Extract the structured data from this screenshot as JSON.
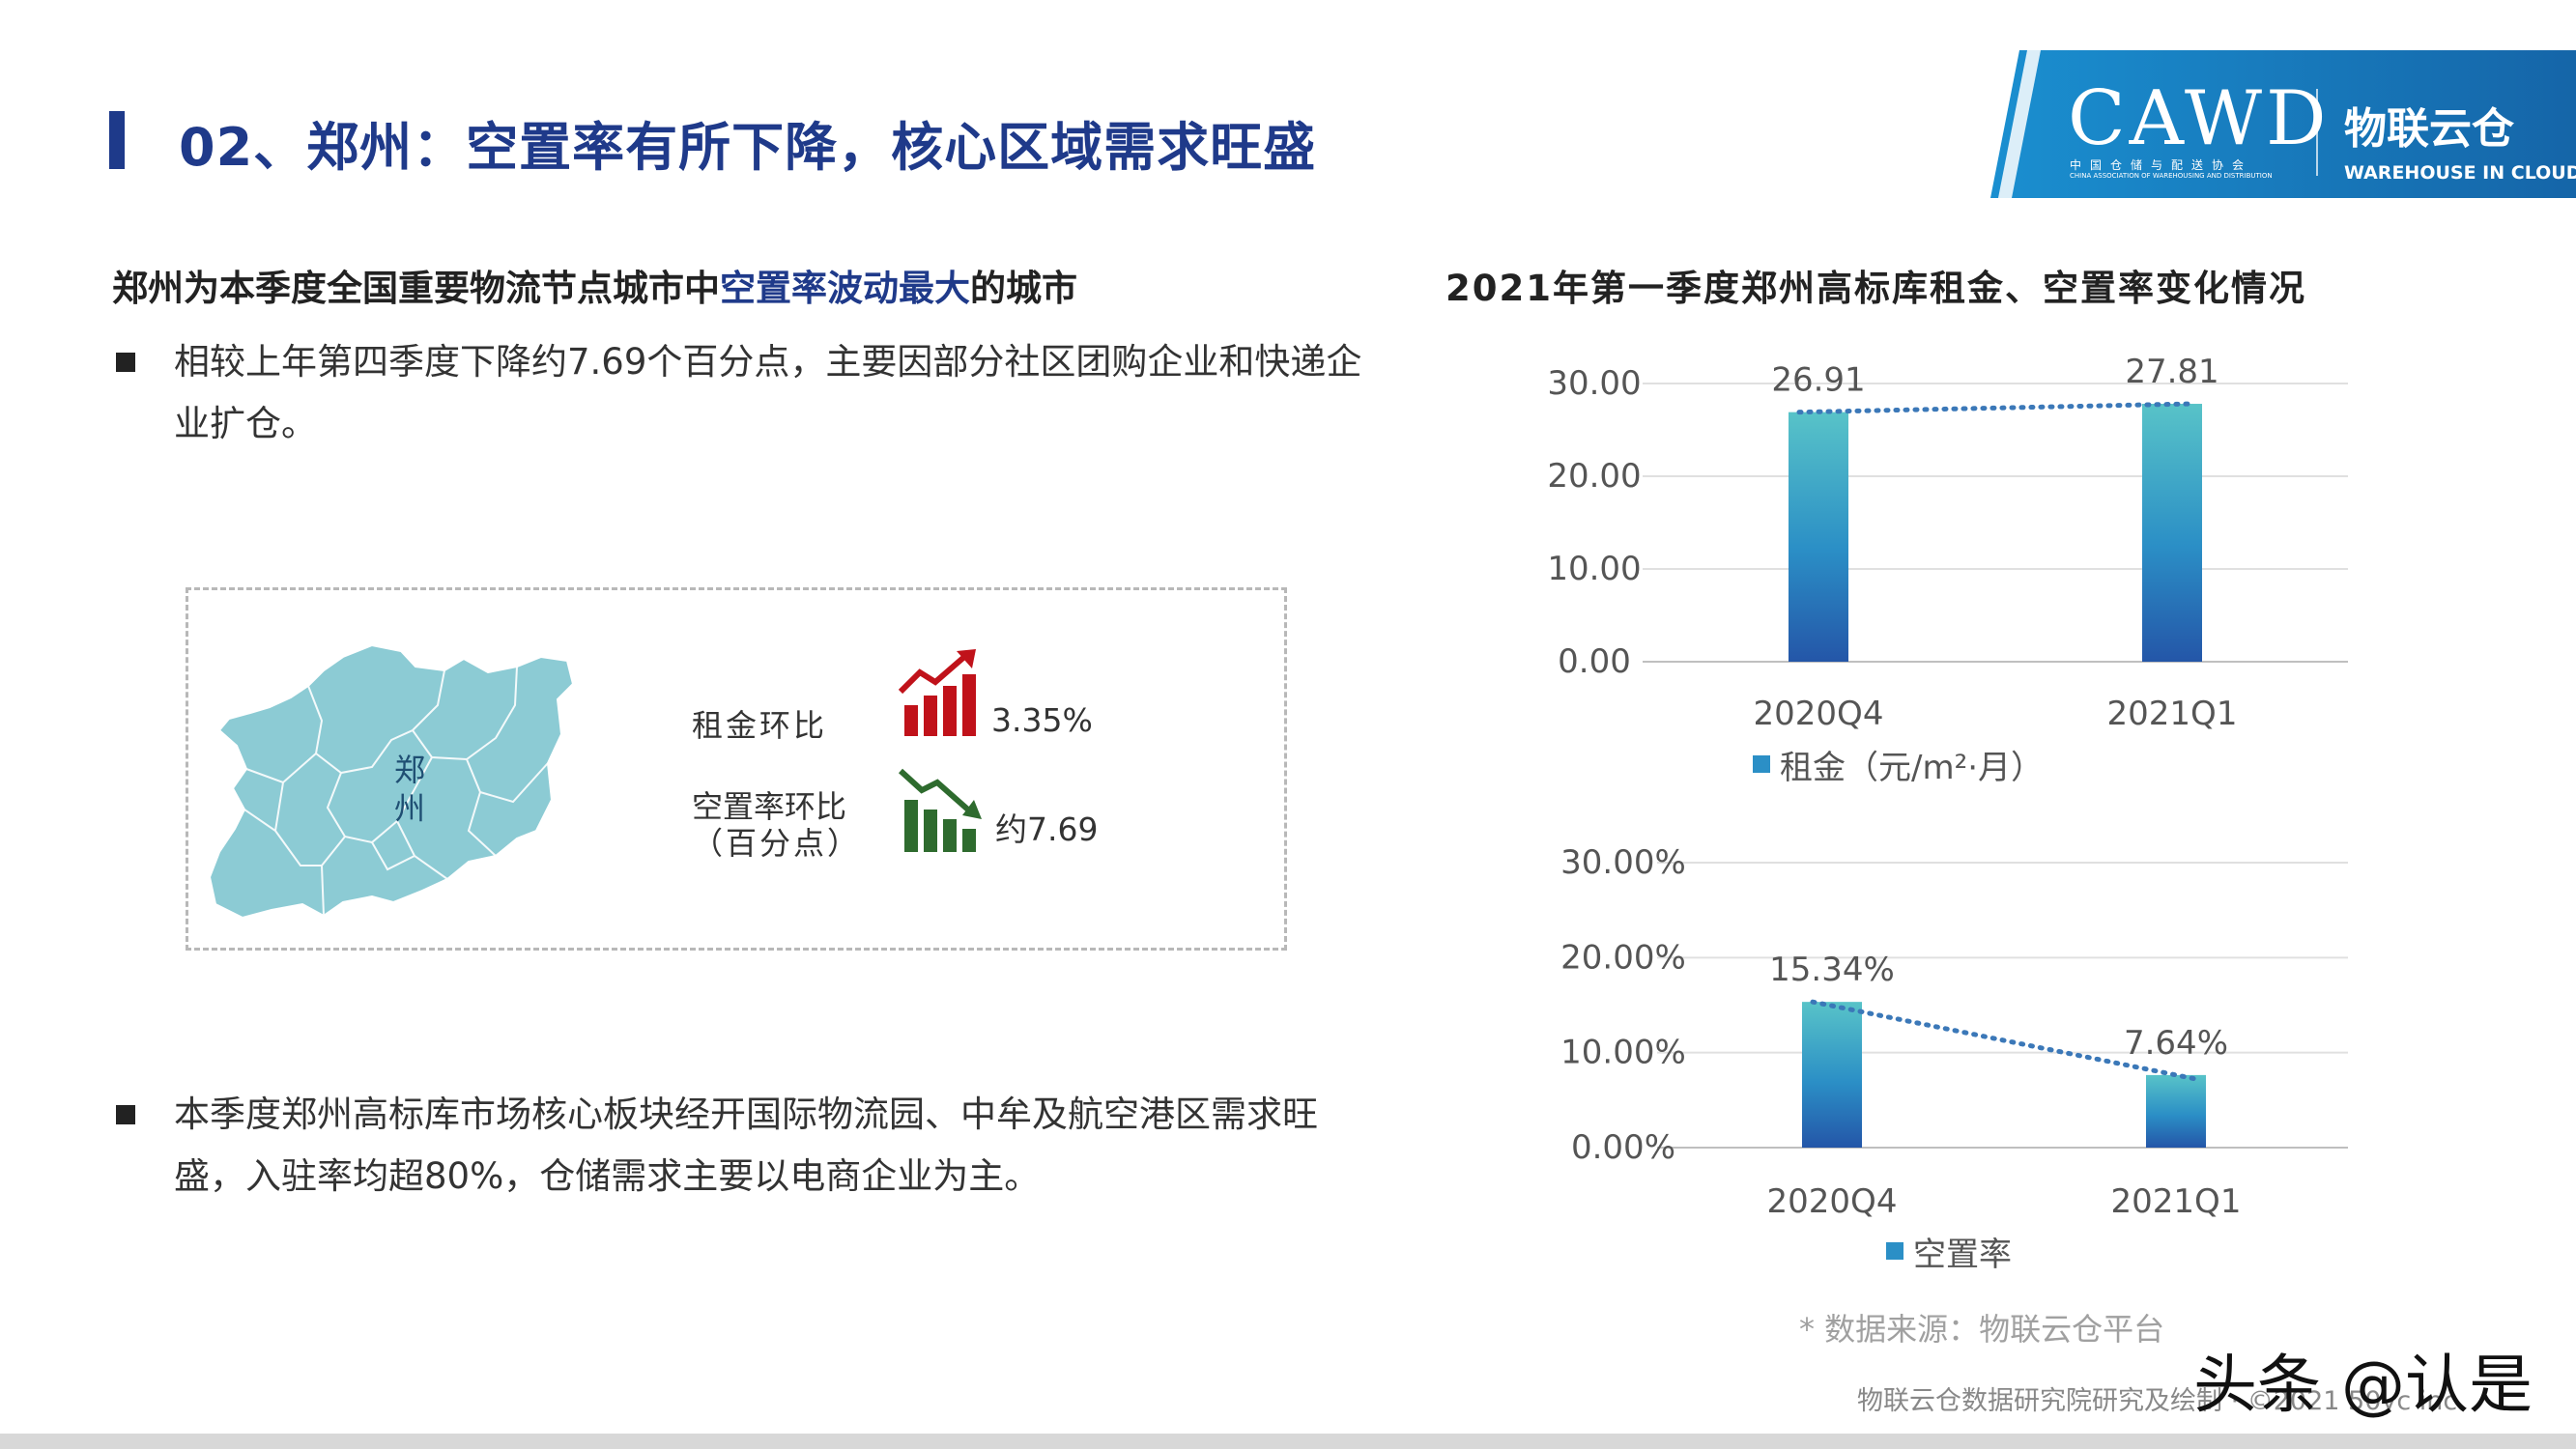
{
  "page": {
    "title": "02、郑州：空置率有所下降，核心区域需求旺盛"
  },
  "logo": {
    "main": "CAWD",
    "sub_cn": "中国仓储与配送协会",
    "sub_en": "CHINA ASSOCIATION OF WAREHOUSING AND DISTRIBUTION",
    "brand_cn": "物联云仓",
    "brand_en": "WAREHOUSE IN CLOUD",
    "colors": {
      "primary": "#1f7fc0",
      "accent": "#e03030"
    }
  },
  "content": {
    "headline_part1": "郑州为本季度全国重要物流节点城市中",
    "headline_highlight": "空置率波动最大",
    "headline_part3": "的城市",
    "bullet1": "相较上年第四季度下降约7.69个百分点，主要因部分社区团购企业和快递企业扩仓。",
    "bullet2": "本季度郑州高标库市场核心板块经开国际物流园、中牟及航空港区需求旺盛，入驻率均超80%，仓储需求主要以电商企业为主。"
  },
  "map_panel": {
    "city_line1": "郑",
    "city_line2": "州",
    "kpi1_label": "租金环比",
    "kpi1_value": "3.35%",
    "kpi1_icon": "trend-up-icon",
    "kpi2_label_line1": "空置率环比",
    "kpi2_label_line2": "（百分点）",
    "kpi2_value": "约7.69",
    "kpi2_icon": "trend-down-icon",
    "colors": {
      "map_fill": "#8ccbd4",
      "up": "#c0121a",
      "down": "#2e6b2e"
    }
  },
  "chart_title": "2021年第一季度郑州高标库租金、空置率变化情况",
  "chart_data": [
    {
      "type": "bar",
      "categories": [
        "2020Q4",
        "2021Q1"
      ],
      "series": [
        {
          "name": "租金（元/m²·月）",
          "values": [
            26.91,
            27.81
          ]
        }
      ],
      "data_labels": [
        "26.91",
        "27.81"
      ],
      "y_ticks": [
        "0.00",
        "10.00",
        "20.00",
        "30.00"
      ],
      "ylim": [
        0,
        30
      ],
      "trendline": "dotted",
      "legend_position": "bottom",
      "grid": true
    },
    {
      "type": "bar",
      "categories": [
        "2020Q4",
        "2021Q1"
      ],
      "series": [
        {
          "name": "空置率",
          "values": [
            15.34,
            7.64
          ]
        }
      ],
      "data_labels": [
        "15.34%",
        "7.64%"
      ],
      "y_ticks": [
        "0.00%",
        "10.00%",
        "20.00%",
        "30.00%"
      ],
      "ylim": [
        0,
        30
      ],
      "trendline": "dotted",
      "legend_position": "bottom",
      "grid": true
    }
  ],
  "source": "* 数据来源：物联云仓平台",
  "footer": "物联云仓数据研究院研究及绘制 · ©2021 50yc inc",
  "watermark": "头条 @认是"
}
